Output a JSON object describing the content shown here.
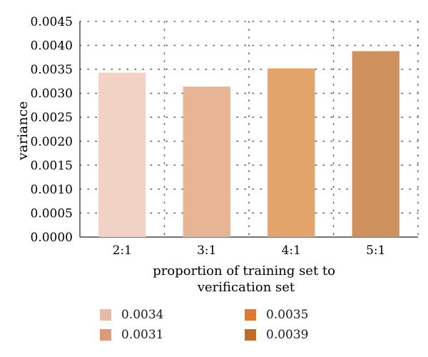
{
  "chart_data": {
    "type": "bar",
    "title": "",
    "xlabel": "proportion of training set to verification set",
    "xlabel_lines": [
      "proportion of training set to",
      "verification set"
    ],
    "ylabel": "variance",
    "categories": [
      "2:1",
      "3:1",
      "4:1",
      "5:1"
    ],
    "values": [
      0.00343,
      0.00314,
      0.00352,
      0.00388
    ],
    "bar_colors": [
      "#f1d2c4",
      "#e7b595",
      "#e3a46c",
      "#cf925f"
    ],
    "ylim": [
      0,
      0.0045
    ],
    "yticks": [
      "0.0000",
      "0.0005",
      "0.0010",
      "0.0015",
      "0.0020",
      "0.0025",
      "0.0030",
      "0.0035",
      "0.0040",
      "0.0045"
    ],
    "grid": true,
    "legend_position": "bottom",
    "legend": [
      {
        "label": "0.0034",
        "color": "#e8b9a3"
      },
      {
        "label": "0.0035",
        "color": "#dc7a32"
      },
      {
        "label": "0.0031",
        "color": "#de9a76"
      },
      {
        "label": "0.0039",
        "color": "#c06b2a"
      }
    ]
  }
}
